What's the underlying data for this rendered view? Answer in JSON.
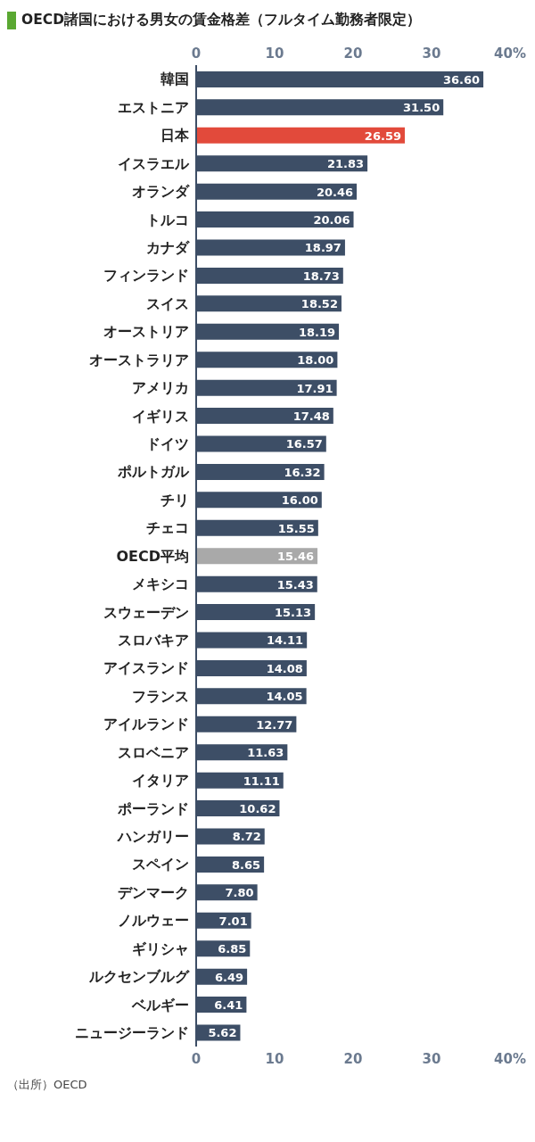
{
  "chart_data": {
    "type": "bar",
    "orientation": "horizontal",
    "title": "OECD諸国における男女の賃金格差（フルタイム勤務者限定）",
    "categories": [
      "韓国",
      "エストニア",
      "日本",
      "イスラエル",
      "オランダ",
      "トルコ",
      "カナダ",
      "フィンランド",
      "スイス",
      "オーストリア",
      "オーストラリア",
      "アメリカ",
      "イギリス",
      "ドイツ",
      "ポルトガル",
      "チリ",
      "チェコ",
      "OECD平均",
      "メキシコ",
      "スウェーデン",
      "スロバキア",
      "アイスランド",
      "フランス",
      "アイルランド",
      "スロベニア",
      "イタリア",
      "ポーランド",
      "ハンガリー",
      "スペイン",
      "デンマーク",
      "ノルウェー",
      "ギリシャ",
      "ルクセンブルグ",
      "ベルギー",
      "ニュージーランド"
    ],
    "values": [
      36.6,
      31.5,
      26.59,
      21.83,
      20.46,
      20.06,
      18.97,
      18.73,
      18.52,
      18.19,
      18.0,
      17.91,
      17.48,
      16.57,
      16.32,
      16.0,
      15.55,
      15.46,
      15.43,
      15.13,
      14.11,
      14.08,
      14.05,
      12.77,
      11.63,
      11.11,
      10.62,
      8.72,
      8.65,
      7.8,
      7.01,
      6.85,
      6.49,
      6.41,
      5.62
    ],
    "value_labels": [
      "36.60",
      "31.50",
      "26.59",
      "21.83",
      "20.46",
      "20.06",
      "18.97",
      "18.73",
      "18.52",
      "18.19",
      "18.00",
      "17.91",
      "17.48",
      "16.57",
      "16.32",
      "16.00",
      "15.55",
      "15.46",
      "15.43",
      "15.13",
      "14.11",
      "14.08",
      "14.05",
      "12.77",
      "11.63",
      "11.11",
      "10.62",
      "8.72",
      "8.65",
      "7.80",
      "7.01",
      "6.85",
      "6.49",
      "6.41",
      "5.62"
    ],
    "colors": [
      "#3d4e66",
      "#3d4e66",
      "#e24a3b",
      "#3d4e66",
      "#3d4e66",
      "#3d4e66",
      "#3d4e66",
      "#3d4e66",
      "#3d4e66",
      "#3d4e66",
      "#3d4e66",
      "#3d4e66",
      "#3d4e66",
      "#3d4e66",
      "#3d4e66",
      "#3d4e66",
      "#3d4e66",
      "#a9a9a9",
      "#3d4e66",
      "#3d4e66",
      "#3d4e66",
      "#3d4e66",
      "#3d4e66",
      "#3d4e66",
      "#3d4e66",
      "#3d4e66",
      "#3d4e66",
      "#3d4e66",
      "#3d4e66",
      "#3d4e66",
      "#3d4e66",
      "#3d4e66",
      "#3d4e66",
      "#3d4e66",
      "#3d4e66"
    ],
    "xlim": [
      0,
      40
    ],
    "xticks": [
      0,
      10,
      20,
      30,
      {
        "value": 40,
        "label": "40%"
      }
    ],
    "x2lim": [
      0,
      40
    ],
    "x2ticks": [
      0,
      10,
      20,
      30,
      {
        "value": 40,
        "label": "40%"
      }
    ],
    "annotations": [
      "（出所）OECD"
    ],
    "grid": false,
    "legend": false
  }
}
